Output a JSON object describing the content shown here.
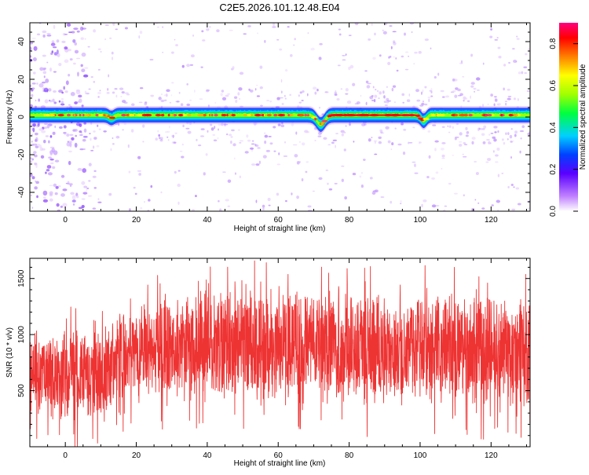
{
  "title": "C2E5.2026.101.12.48.E04",
  "chart_data": [
    {
      "type": "heatmap",
      "xlabel": "Height of straight line (km)",
      "ylabel": "Frequency (Hz)",
      "xlim": [
        -10,
        131
      ],
      "ylim": [
        -50,
        50
      ],
      "x_ticks": [
        0,
        20,
        40,
        60,
        80,
        100,
        120
      ],
      "y_ticks": [
        -40,
        -20,
        0,
        20,
        40
      ],
      "colorbar": {
        "label": "Normalized spectral amplitude",
        "range": [
          0.0,
          0.9
        ],
        "ticks": [
          0.0,
          0.2,
          0.4,
          0.6,
          0.8
        ]
      },
      "band": {
        "center_hz": 1,
        "half_width_hz": 3,
        "dips": [
          {
            "x": 13,
            "depth_hz": 1.5
          },
          {
            "x": 72,
            "depth_hz": 5
          },
          {
            "x": 101,
            "depth_hz": 3
          }
        ]
      }
    },
    {
      "type": "line",
      "xlabel": "Height of straight line (km)",
      "ylabel": "SNR (10 * v/v)",
      "xlim": [
        -10,
        131
      ],
      "ylim": [
        0,
        1680
      ],
      "x_ticks": [
        0,
        20,
        40,
        60,
        80,
        100,
        120
      ],
      "y_ticks": [
        500,
        1000,
        1500
      ],
      "color": "#ee3333",
      "envelope": [
        {
          "x": -10,
          "low": 250,
          "high": 1050
        },
        {
          "x": 0,
          "low": 200,
          "high": 1100
        },
        {
          "x": 10,
          "low": 200,
          "high": 1050
        },
        {
          "x": 14,
          "low": 350,
          "high": 1250
        },
        {
          "x": 20,
          "low": 400,
          "high": 1300
        },
        {
          "x": 30,
          "low": 400,
          "high": 1350
        },
        {
          "x": 40,
          "low": 350,
          "high": 1450
        },
        {
          "x": 50,
          "low": 350,
          "high": 1500
        },
        {
          "x": 60,
          "low": 300,
          "high": 1500
        },
        {
          "x": 70,
          "low": 350,
          "high": 1450
        },
        {
          "x": 80,
          "low": 350,
          "high": 1450
        },
        {
          "x": 90,
          "low": 300,
          "high": 1400
        },
        {
          "x": 100,
          "low": 350,
          "high": 1450
        },
        {
          "x": 110,
          "low": 350,
          "high": 1400
        },
        {
          "x": 120,
          "low": 300,
          "high": 1400
        },
        {
          "x": 131,
          "low": 300,
          "high": 1350
        }
      ]
    }
  ]
}
